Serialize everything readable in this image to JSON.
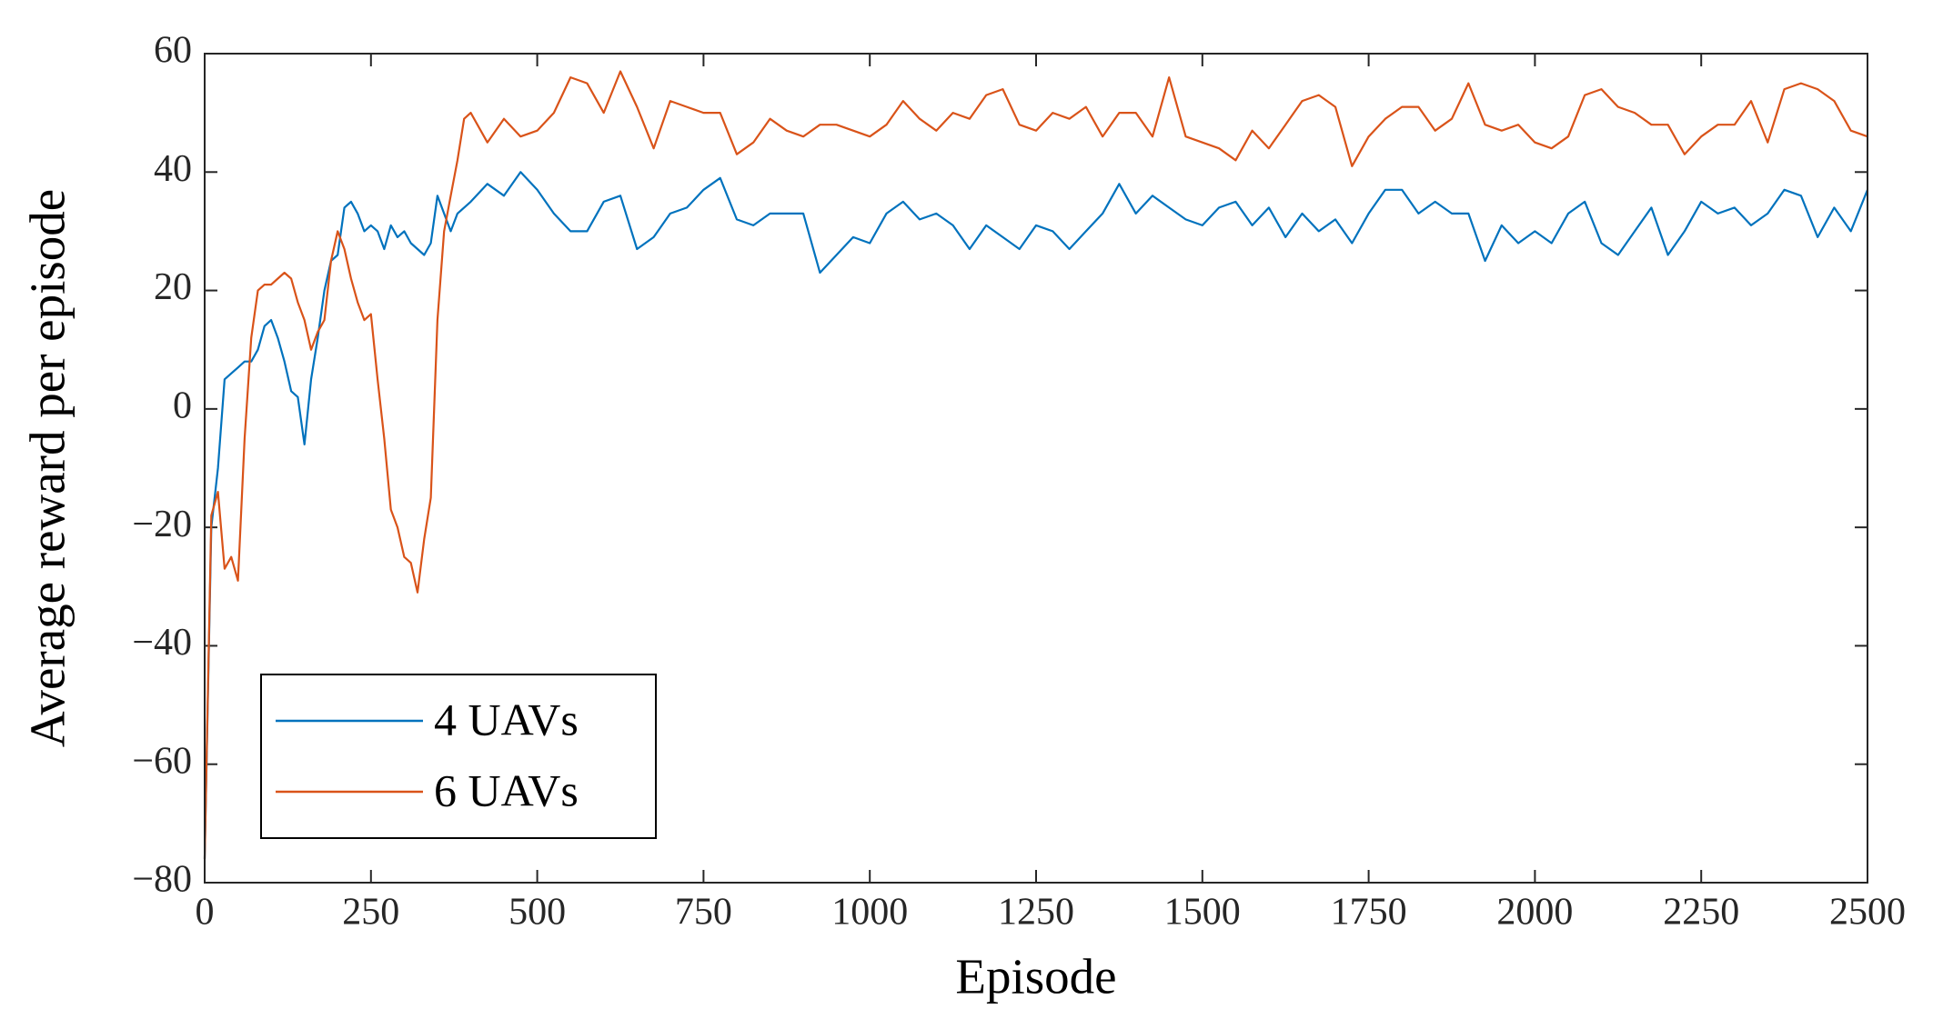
{
  "chart_data": {
    "type": "line",
    "xlabel": "Episode",
    "ylabel": "Average reward per episode",
    "x": [
      0,
      10,
      20,
      30,
      40,
      50,
      60,
      70,
      80,
      90,
      100,
      110,
      120,
      130,
      140,
      150,
      160,
      170,
      180,
      190,
      200,
      210,
      220,
      230,
      240,
      250,
      260,
      270,
      280,
      290,
      300,
      310,
      320,
      330,
      340,
      350,
      360,
      370,
      380,
      390,
      400,
      425,
      450,
      475,
      500,
      525,
      550,
      575,
      600,
      625,
      650,
      675,
      700,
      725,
      750,
      775,
      800,
      825,
      850,
      875,
      900,
      925,
      950,
      975,
      1000,
      1025,
      1050,
      1075,
      1100,
      1125,
      1150,
      1175,
      1200,
      1225,
      1250,
      1275,
      1300,
      1325,
      1350,
      1375,
      1400,
      1425,
      1450,
      1475,
      1500,
      1525,
      1550,
      1575,
      1600,
      1625,
      1650,
      1675,
      1700,
      1725,
      1750,
      1775,
      1800,
      1825,
      1850,
      1875,
      1900,
      1925,
      1950,
      1975,
      2000,
      2025,
      2050,
      2075,
      2100,
      2125,
      2150,
      2175,
      2200,
      2225,
      2250,
      2275,
      2300,
      2325,
      2350,
      2375,
      2400,
      2425,
      2450,
      2475,
      2500
    ],
    "series": [
      {
        "name": "4 UAVs",
        "color": "#0072bd",
        "values": [
          -76,
          -20,
          -10,
          5,
          6,
          7,
          8,
          8,
          10,
          14,
          15,
          12,
          8,
          3,
          2,
          -6,
          5,
          12,
          20,
          25,
          26,
          34,
          35,
          33,
          30,
          31,
          30,
          27,
          31,
          29,
          30,
          28,
          27,
          26,
          28,
          36,
          33,
          30,
          33,
          34,
          35,
          38,
          36,
          40,
          37,
          33,
          30,
          30,
          35,
          36,
          27,
          29,
          33,
          34,
          37,
          39,
          32,
          31,
          33,
          33,
          33,
          23,
          26,
          29,
          28,
          33,
          35,
          32,
          33,
          31,
          27,
          31,
          29,
          27,
          31,
          30,
          27,
          30,
          33,
          38,
          33,
          36,
          34,
          32,
          31,
          34,
          35,
          31,
          34,
          29,
          33,
          30,
          32,
          28,
          33,
          37,
          37,
          33,
          35,
          33,
          33,
          25,
          31,
          28,
          30,
          28,
          33,
          35,
          28,
          26,
          30,
          34,
          26,
          30,
          35,
          33,
          34,
          31,
          33,
          37,
          36,
          29,
          34,
          30,
          37
        ]
      },
      {
        "name": "6 UAVs",
        "color": "#d95319",
        "values": [
          -76,
          -18,
          -14,
          -27,
          -25,
          -29,
          -5,
          12,
          20,
          21,
          21,
          22,
          23,
          22,
          18,
          15,
          10,
          13,
          15,
          25,
          30,
          27,
          22,
          18,
          15,
          16,
          5,
          -5,
          -17,
          -20,
          -25,
          -26,
          -31,
          -22,
          -15,
          15,
          30,
          36,
          42,
          49,
          50,
          45,
          49,
          46,
          47,
          50,
          56,
          55,
          50,
          57,
          51,
          44,
          52,
          51,
          50,
          50,
          43,
          45,
          49,
          47,
          46,
          48,
          48,
          47,
          46,
          48,
          52,
          49,
          47,
          50,
          49,
          53,
          54,
          48,
          47,
          50,
          49,
          51,
          46,
          50,
          50,
          46,
          56,
          46,
          45,
          44,
          42,
          47,
          44,
          48,
          52,
          53,
          51,
          41,
          46,
          49,
          51,
          51,
          47,
          49,
          55,
          48,
          47,
          48,
          45,
          44,
          46,
          53,
          54,
          51,
          50,
          48,
          48,
          43,
          46,
          48,
          48,
          52,
          45,
          54,
          55,
          54,
          52,
          47,
          46
        ]
      }
    ],
    "xlim": [
      0,
      2500
    ],
    "xticks": [
      0,
      250,
      500,
      750,
      1000,
      1250,
      1500,
      1750,
      2000,
      2250,
      2500
    ],
    "ylim": [
      -80,
      60
    ],
    "yticks": [
      {
        "value": -80,
        "label": "−80"
      },
      {
        "value": -60,
        "label": "−60"
      },
      {
        "value": -40,
        "label": "−40"
      },
      {
        "value": -20,
        "label": "−20"
      },
      0,
      20,
      40,
      60
    ],
    "grid": false,
    "legend": "southwest"
  }
}
